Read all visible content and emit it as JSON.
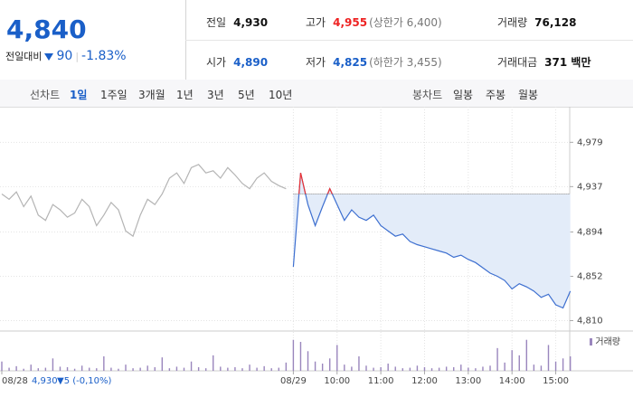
{
  "header": {
    "price": "4,840",
    "change_label": "전일대비",
    "change": "90",
    "rate": "-1.83%",
    "stats": [
      [
        {
          "label": "전일",
          "value": "4,930"
        },
        {
          "label": "고가",
          "value": "4,955",
          "extra": "(상한가 6,400)"
        },
        {
          "label": "거래량",
          "value": "76,128"
        }
      ],
      [
        {
          "label": "시가",
          "value": "4,890"
        },
        {
          "label": "저가",
          "value": "4,825",
          "extra": "(하한가 3,455)"
        },
        {
          "label": "거래대금",
          "value": "371 백만"
        }
      ]
    ],
    "tabs_line": {
      "label": "선차트",
      "items": [
        "1일",
        "1주일",
        "3개월",
        "1년",
        "3년",
        "5년",
        "10년"
      ]
    },
    "tabs_candle": {
      "label": "봉차트",
      "items": [
        "일봉",
        "주봉",
        "월봉"
      ]
    },
    "hover_info": {
      "price": "4,930",
      "change": "▼5 (-0,10%)"
    }
  },
  "chart_data": {
    "type": "line",
    "grid": true,
    "baseline": 4930,
    "categories": [
      "08/28",
      null,
      null,
      null,
      null,
      null,
      null,
      null,
      null,
      null,
      null,
      null,
      null,
      null,
      null,
      null,
      null,
      null,
      null,
      null,
      null,
      null,
      null,
      null,
      null,
      null,
      null,
      null,
      null,
      null,
      null,
      null,
      null,
      null,
      null,
      null,
      null,
      null,
      null,
      null,
      "08/29",
      null,
      null,
      null,
      null,
      null,
      "10:00",
      null,
      null,
      null,
      null,
      null,
      "11:00",
      null,
      null,
      null,
      null,
      null,
      "12:00",
      null,
      null,
      null,
      null,
      null,
      "13:00",
      null,
      null,
      null,
      null,
      null,
      "14:00",
      null,
      null,
      null,
      null,
      null,
      "15:00",
      null,
      null
    ],
    "ylim": [
      4801,
      5005
    ],
    "yticks": [
      {
        "value": 4810,
        "label": "4,810"
      },
      {
        "value": 4852,
        "label": "4,852"
      },
      {
        "value": 4894,
        "label": "4,894"
      },
      {
        "value": 4937,
        "label": "4,937"
      },
      {
        "value": 4979,
        "label": "4,979"
      }
    ],
    "y2lim": [
      0,
      3500
    ],
    "series": [
      {
        "color": "#b4b4b4",
        "values": [
          4930,
          4925,
          4932,
          4918,
          4928,
          4910,
          4905,
          4920,
          4915,
          4908,
          4912,
          4925,
          4918,
          4900,
          4910,
          4922,
          4915,
          4895,
          4890,
          4910,
          4925,
          4920,
          4930,
          4945,
          4950,
          4940,
          4955,
          4958,
          4950,
          4952,
          4945,
          4955,
          4948,
          4940,
          4935,
          4945,
          4950,
          4942,
          4938,
          4935,
          null,
          null,
          null,
          null,
          null,
          null,
          null,
          null,
          null,
          null,
          null,
          null,
          null,
          null,
          null,
          null,
          null,
          null,
          null,
          null,
          null,
          null,
          null,
          null,
          null,
          null,
          null,
          null,
          null,
          null,
          null,
          null,
          null,
          null,
          null,
          null,
          null,
          null,
          null
        ]
      },
      {
        "color": "#3d6fd0",
        "values": [
          null,
          null,
          null,
          null,
          null,
          null,
          null,
          null,
          null,
          null,
          null,
          null,
          null,
          null,
          null,
          null,
          null,
          null,
          null,
          null,
          null,
          null,
          null,
          null,
          null,
          null,
          null,
          null,
          null,
          null,
          null,
          null,
          null,
          null,
          null,
          null,
          null,
          null,
          null,
          null,
          4861,
          4950,
          4920,
          4900,
          4918,
          4935,
          4920,
          4905,
          4915,
          4908,
          4905,
          4910,
          4900,
          4895,
          4890,
          4892,
          4885,
          4882,
          4880,
          4878,
          4876,
          4874,
          4870,
          4872,
          4868,
          4865,
          4860,
          4855,
          4852,
          4848,
          4840,
          4845,
          4842,
          4838,
          4832,
          4835,
          4825,
          4822,
          4838
        ]
      },
      {
        "name": "거래량",
        "type": "bar",
        "axis": "y2",
        "color": "#9a86bd",
        "values": [
          900,
          300,
          450,
          200,
          600,
          250,
          300,
          1200,
          400,
          350,
          200,
          500,
          300,
          250,
          1400,
          300,
          200,
          600,
          250,
          300,
          500,
          350,
          1300,
          250,
          400,
          300,
          900,
          350,
          250,
          1500,
          400,
          300,
          350,
          250,
          600,
          300,
          450,
          250,
          300,
          800,
          3000,
          2800,
          1900,
          900,
          700,
          1200,
          2500,
          600,
          400,
          1400,
          500,
          300,
          350,
          700,
          400,
          250,
          300,
          500,
          350,
          250,
          300,
          400,
          350,
          600,
          300,
          250,
          400,
          500,
          2200,
          800,
          2000,
          1500,
          3000,
          600,
          500,
          2500,
          900,
          1200,
          1400
        ]
      }
    ]
  }
}
